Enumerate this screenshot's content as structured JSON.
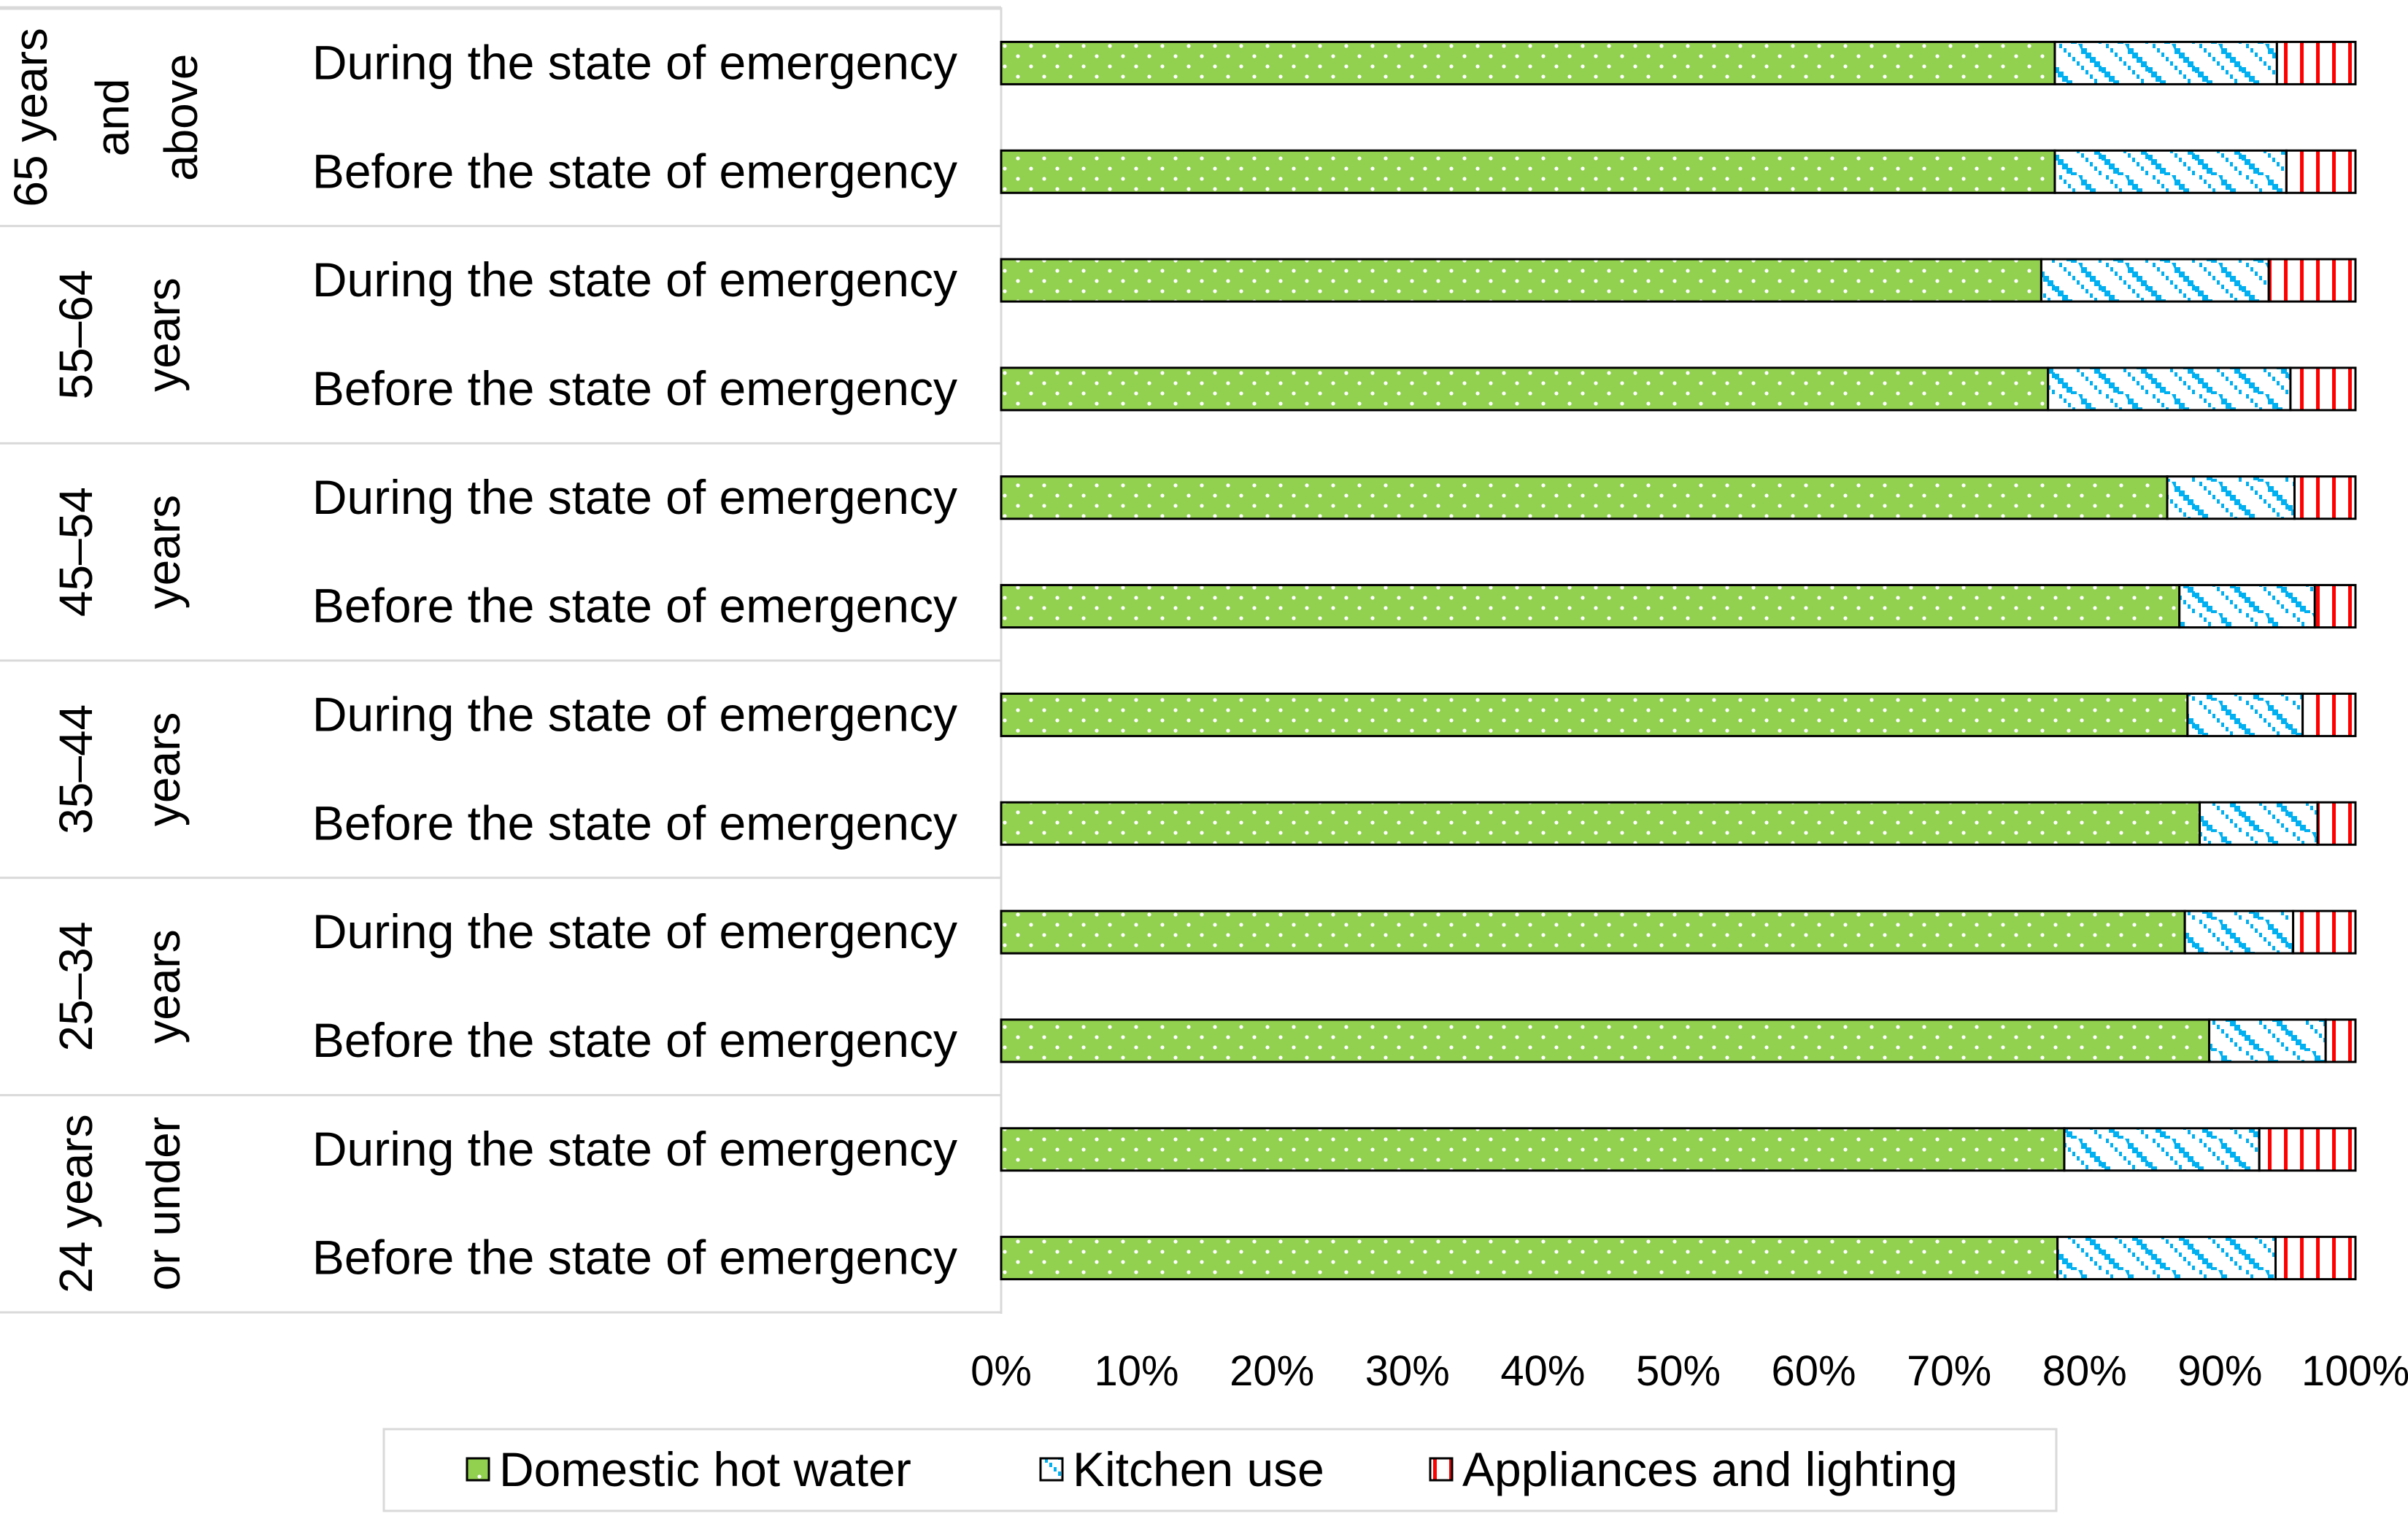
{
  "chart_data": {
    "type": "bar",
    "orientation": "horizontal",
    "stacked": "percent",
    "title": "",
    "xlabel": "",
    "ylabel": "",
    "xlim": [
      0,
      100
    ],
    "x_ticks": [
      "0%",
      "10%",
      "20%",
      "30%",
      "40%",
      "50%",
      "60%",
      "70%",
      "80%",
      "90%",
      "100%"
    ],
    "grid": false,
    "legend_position": "bottom",
    "groups": [
      {
        "label": "65 years and above",
        "lines": [
          "65 years",
          "and",
          "above"
        ]
      },
      {
        "label": "55–64 years",
        "lines": [
          "55–64",
          "years"
        ]
      },
      {
        "label": "45–54 years",
        "lines": [
          "45–54",
          "years"
        ]
      },
      {
        "label": "35–44 years",
        "lines": [
          "35–44",
          "years"
        ]
      },
      {
        "label": "25–34 years",
        "lines": [
          "25–34",
          "years"
        ]
      },
      {
        "label": "24 years or under",
        "lines": [
          "24 years",
          "or under"
        ]
      }
    ],
    "categories": [
      "During the state of emergency",
      "Before the state of emergency",
      "During the state of emergency",
      "Before the state of emergency",
      "During the state of emergency",
      "Before the state of emergency",
      "During the state of emergency",
      "Before the state of emergency",
      "During the state of emergency",
      "Before the state of emergency",
      "During the state of emergency",
      "Before the state of emergency"
    ],
    "series": [
      {
        "name": "Domestic hot water",
        "color": "#92d050",
        "pattern": "dots",
        "values": [
          77.8,
          77.8,
          76.8,
          77.3,
          86.1,
          87.0,
          87.6,
          88.5,
          87.4,
          89.2,
          78.5,
          78.0
        ]
      },
      {
        "name": "Kitchen use",
        "color": "#00b0f0",
        "pattern": "zigzag-diagonal",
        "values": [
          16.4,
          17.1,
          16.8,
          17.9,
          9.4,
          10.0,
          8.5,
          8.7,
          8.0,
          8.6,
          14.4,
          16.1
        ]
      },
      {
        "name": "Appliances and lighting",
        "color": "#ff0000",
        "pattern": "vertical-stripes",
        "values": [
          5.8,
          5.1,
          6.4,
          4.8,
          4.5,
          3.0,
          3.9,
          2.8,
          4.6,
          2.2,
          7.1,
          5.9
        ]
      }
    ]
  }
}
